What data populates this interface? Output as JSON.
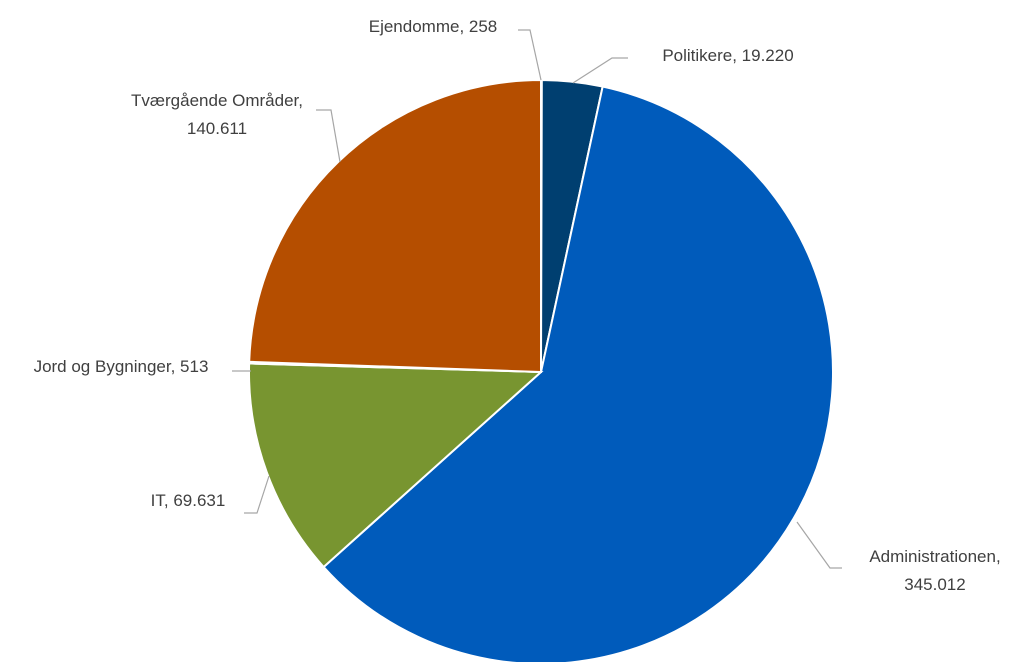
{
  "chart_data": {
    "type": "pie",
    "title": "",
    "start_angle_deg": 0,
    "direction": "clockwise",
    "slices": [
      {
        "name": "Ejendomme",
        "value": 258,
        "value_label": "258",
        "color": "#1F3864"
      },
      {
        "name": "Politikere",
        "value": 19220,
        "value_label": "19.220",
        "color": "#003f70"
      },
      {
        "name": "Administrationen",
        "value": 345012,
        "value_label": "345.012",
        "color": "#005bbb"
      },
      {
        "name": "IT",
        "value": 69631,
        "value_label": "69.631",
        "color": "#789530"
      },
      {
        "name": "Jord og Bygninger",
        "value": 513,
        "value_label": "513",
        "color": "#4e6c20"
      },
      {
        "name": "Tværgående Områder",
        "value": 140611,
        "value_label": "140.611",
        "color": "#b54e00"
      }
    ]
  }
}
